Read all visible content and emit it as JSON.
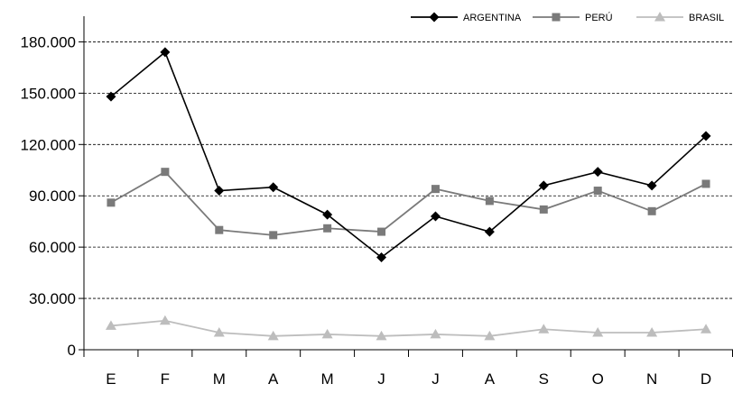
{
  "chart_data": {
    "type": "line",
    "categories": [
      "E",
      "F",
      "M",
      "A",
      "M",
      "J",
      "J",
      "A",
      "S",
      "O",
      "N",
      "D"
    ],
    "ylim": [
      0,
      195000
    ],
    "yticks": [
      0,
      30000,
      60000,
      90000,
      120000,
      150000,
      180000
    ],
    "ytick_labels": [
      "0",
      "30.000",
      "60.000",
      "90.000",
      "120.000",
      "150.000",
      "180.000"
    ],
    "grid": "horizontal dashed",
    "legend_position": "top-right",
    "series": [
      {
        "name": "ARGENTINA",
        "marker": "diamond",
        "color": "#000000",
        "values": [
          148000,
          174000,
          93000,
          95000,
          79000,
          54000,
          78000,
          69000,
          96000,
          104000,
          96000,
          125000
        ]
      },
      {
        "name": "PERÚ",
        "marker": "square",
        "color": "#7a7a7a",
        "values": [
          86000,
          104000,
          70000,
          67000,
          71000,
          69000,
          94000,
          87000,
          82000,
          93000,
          81000,
          97000
        ]
      },
      {
        "name": "BRASIL",
        "marker": "triangle",
        "color": "#bdbdbd",
        "values": [
          14000,
          17000,
          10000,
          8000,
          9000,
          8000,
          9000,
          8000,
          12000,
          10000,
          10000,
          12000
        ]
      }
    ]
  }
}
